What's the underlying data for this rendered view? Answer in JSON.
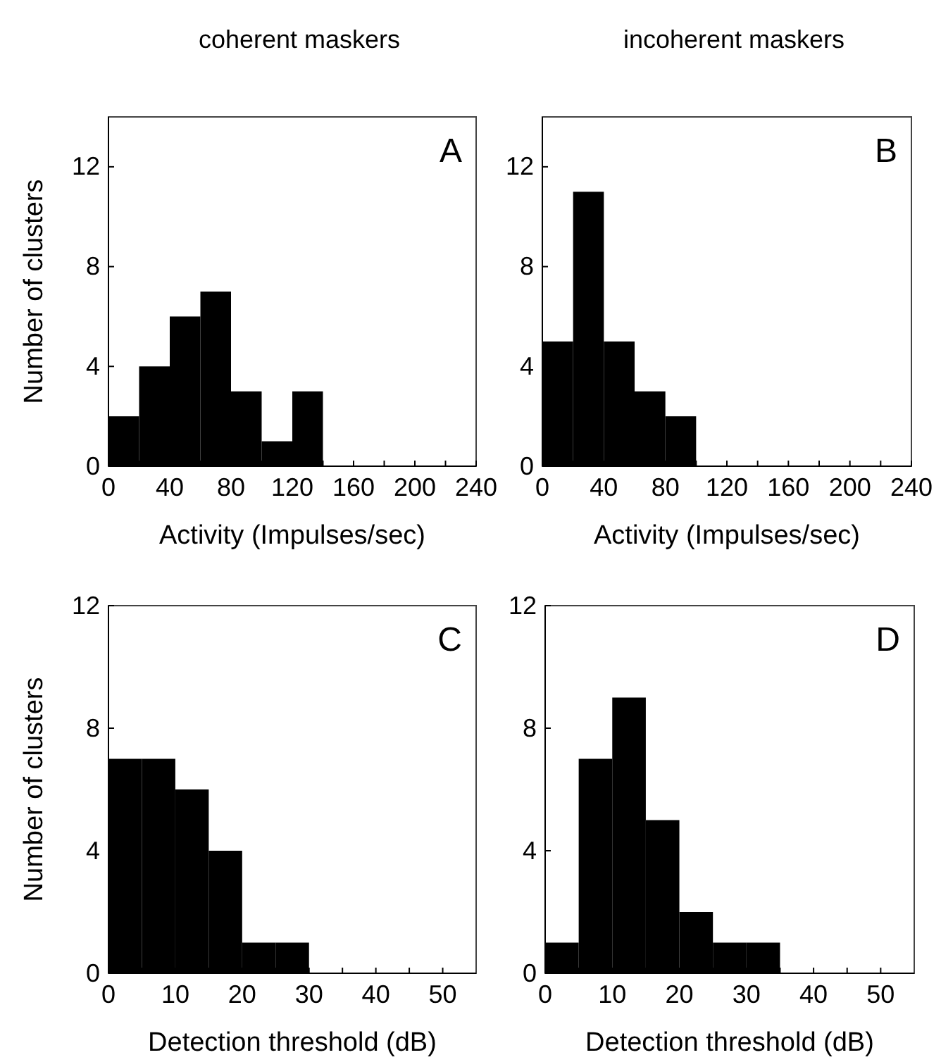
{
  "chart_data": [
    {
      "type": "histogram",
      "title": "coherent maskers",
      "xlabel": "Activity (Impulses/sec)",
      "ylabel": "Number of clusters",
      "annotations": [
        "A"
      ],
      "bins": [
        0,
        20,
        40,
        60,
        80,
        100,
        120,
        140
      ],
      "values": [
        2,
        4,
        6,
        7,
        3,
        1,
        3
      ],
      "color": "#000000",
      "xlim": [
        0,
        240
      ],
      "ylim": [
        0,
        14
      ],
      "xticks": [
        0,
        {
          "value": 20,
          "label": null
        },
        40,
        {
          "value": 60,
          "label": null
        },
        80,
        {
          "value": 100,
          "label": null
        },
        120,
        {
          "value": 140,
          "label": null
        },
        160,
        {
          "value": 180,
          "label": null
        },
        200,
        {
          "value": 220,
          "label": null
        },
        240
      ],
      "yticks": [
        0,
        4,
        8,
        12
      ]
    },
    {
      "type": "histogram",
      "title": "incoherent maskers",
      "xlabel": "Activity (Impulses/sec)",
      "annotations": [
        "B"
      ],
      "bins": [
        0,
        20,
        40,
        60,
        80,
        100
      ],
      "values": [
        5,
        11,
        5,
        3,
        2
      ],
      "color": "#000000",
      "xlim": [
        0,
        240
      ],
      "ylim": [
        0,
        14
      ],
      "xticks": [
        0,
        {
          "value": 20,
          "label": null
        },
        40,
        {
          "value": 60,
          "label": null
        },
        80,
        {
          "value": 100,
          "label": null
        },
        120,
        {
          "value": 140,
          "label": null
        },
        160,
        {
          "value": 180,
          "label": null
        },
        200,
        {
          "value": 220,
          "label": null
        },
        240
      ],
      "yticks": [
        0,
        4,
        8,
        12
      ]
    },
    {
      "type": "histogram",
      "xlabel": "Detection threshold (dB)",
      "ylabel": "Number of clusters",
      "annotations": [
        "C"
      ],
      "bins": [
        0,
        5,
        10,
        15,
        20,
        25,
        30
      ],
      "values": [
        7,
        7,
        6,
        4,
        1,
        1
      ],
      "color": "#000000",
      "xlim": [
        0,
        55
      ],
      "ylim": [
        0,
        12
      ],
      "xticks": [
        0,
        {
          "value": 5,
          "label": null
        },
        10,
        {
          "value": 15,
          "label": null
        },
        20,
        {
          "value": 25,
          "label": null
        },
        30,
        {
          "value": 35,
          "label": null
        },
        40,
        {
          "value": 45,
          "label": null
        },
        50
      ],
      "yticks": [
        0,
        4,
        8,
        12
      ]
    },
    {
      "type": "histogram",
      "xlabel": "Detection threshold (dB)",
      "annotations": [
        "D"
      ],
      "bins": [
        0,
        5,
        10,
        15,
        20,
        25,
        30,
        35
      ],
      "values": [
        1,
        7,
        9,
        5,
        2,
        1,
        1
      ],
      "color": "#000000",
      "xlim": [
        0,
        55
      ],
      "ylim": [
        0,
        12
      ],
      "xticks": [
        0,
        {
          "value": 5,
          "label": null
        },
        10,
        {
          "value": 15,
          "label": null
        },
        20,
        {
          "value": 25,
          "label": null
        },
        30,
        {
          "value": 35,
          "label": null
        },
        40,
        {
          "value": 45,
          "label": null
        },
        50
      ],
      "yticks": [
        0,
        4,
        8,
        12
      ]
    }
  ]
}
